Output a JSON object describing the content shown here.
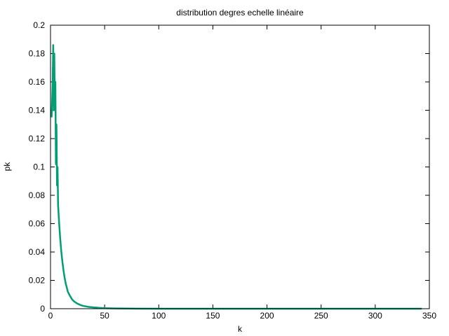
{
  "chart_data": {
    "type": "line",
    "title": "distribution degres echelle linéaire",
    "xlabel": "k",
    "ylabel": "pk",
    "xlim": [
      0,
      350
    ],
    "ylim": [
      0,
      0.2
    ],
    "grid": false,
    "line_color": "#009e73",
    "x_ticks": [
      {
        "value": 0,
        "label": "0"
      },
      {
        "value": 50,
        "label": "50"
      },
      {
        "value": 100,
        "label": "100"
      },
      {
        "value": 150,
        "label": "150"
      },
      {
        "value": 200,
        "label": "200"
      },
      {
        "value": 250,
        "label": "250"
      },
      {
        "value": 300,
        "label": "300"
      },
      {
        "value": 350,
        "label": "350"
      }
    ],
    "y_ticks": [
      {
        "value": 0,
        "label": "0"
      },
      {
        "value": 0.02,
        "label": "0.02"
      },
      {
        "value": 0.04,
        "label": "0.04"
      },
      {
        "value": 0.06,
        "label": "0.06"
      },
      {
        "value": 0.08,
        "label": "0.08"
      },
      {
        "value": 0.1,
        "label": "0.1"
      },
      {
        "value": 0.12,
        "label": "0.12"
      },
      {
        "value": 0.14,
        "label": "0.14"
      },
      {
        "value": 0.16,
        "label": "0.16"
      },
      {
        "value": 0.18,
        "label": "0.18"
      },
      {
        "value": 0.2,
        "label": "0.2"
      }
    ],
    "series": [
      {
        "x": [
          1,
          2,
          2.5,
          3,
          3.5,
          4,
          4.5,
          5,
          5.5,
          6,
          6.5,
          7,
          8,
          9,
          10,
          11,
          12,
          13,
          14,
          15,
          16,
          18,
          20,
          22,
          25,
          28,
          30,
          35,
          40,
          45,
          50,
          60,
          70,
          80,
          100,
          150,
          200,
          250,
          300,
          343
        ],
        "y": [
          0.135,
          0.16,
          0.186,
          0.14,
          0.18,
          0.14,
          0.16,
          0.102,
          0.13,
          0.087,
          0.1,
          0.073,
          0.06,
          0.049,
          0.04,
          0.033,
          0.027,
          0.022,
          0.018,
          0.015,
          0.012,
          0.009,
          0.0065,
          0.005,
          0.0035,
          0.0025,
          0.002,
          0.0013,
          0.0009,
          0.0006,
          0.0004,
          0.0002,
          0.0001,
          5e-05,
          2e-05,
          1e-05,
          1e-05,
          1e-05,
          1e-05,
          0
        ]
      }
    ]
  }
}
